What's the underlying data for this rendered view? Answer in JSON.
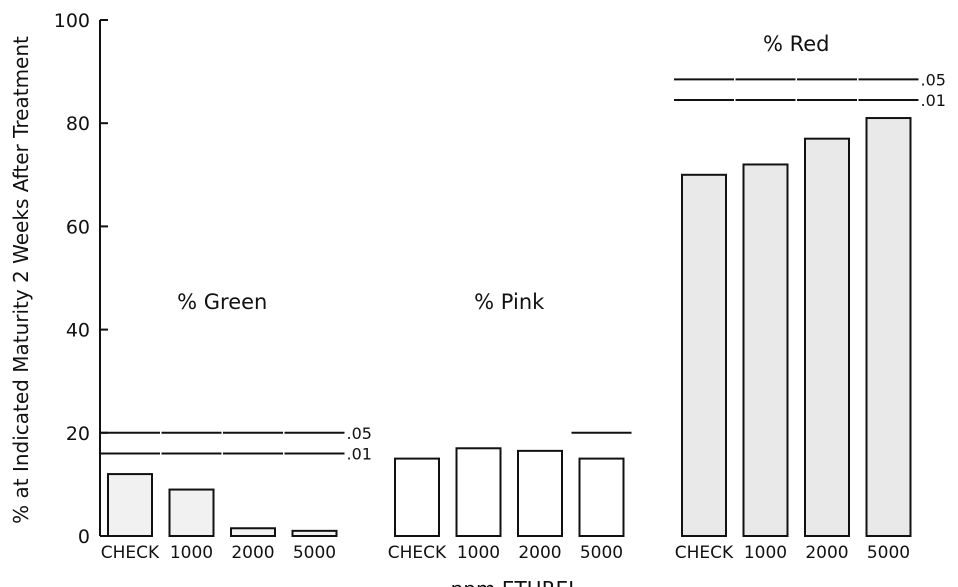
{
  "chart_data": {
    "type": "bar",
    "title": "",
    "ylabel": "% at Indicated Maturity 2 Weeks After Treatment",
    "xlabel": "ppm ETHREL",
    "ylim": [
      0,
      100
    ],
    "yticks": [
      0,
      20,
      40,
      60,
      80,
      100
    ],
    "grid": false,
    "legend": "none",
    "categories": [
      "CHECK",
      "1000",
      "2000",
      "5000"
    ],
    "series": [
      {
        "name": "% Green",
        "values": [
          12,
          9,
          1.5,
          1
        ]
      },
      {
        "name": "% Pink",
        "values": [
          15,
          17,
          16.5,
          15
        ]
      },
      {
        "name": "% Red",
        "values": [
          70,
          72,
          77,
          81
        ]
      }
    ],
    "significance_lines": [
      {
        "group": "% Green",
        "label": ".05",
        "value": 20
      },
      {
        "group": "% Green",
        "label": ".01",
        "value": 16
      },
      {
        "group": "% Pink",
        "label": "",
        "value": 20
      },
      {
        "group": "% Red",
        "label": ".05",
        "value": 88.5
      },
      {
        "group": "% Red",
        "label": ".01",
        "value": 84.5
      }
    ],
    "bar_fill_colors": [
      "#f1f1f1",
      "#ffffff",
      "#e9e9e9"
    ]
  }
}
